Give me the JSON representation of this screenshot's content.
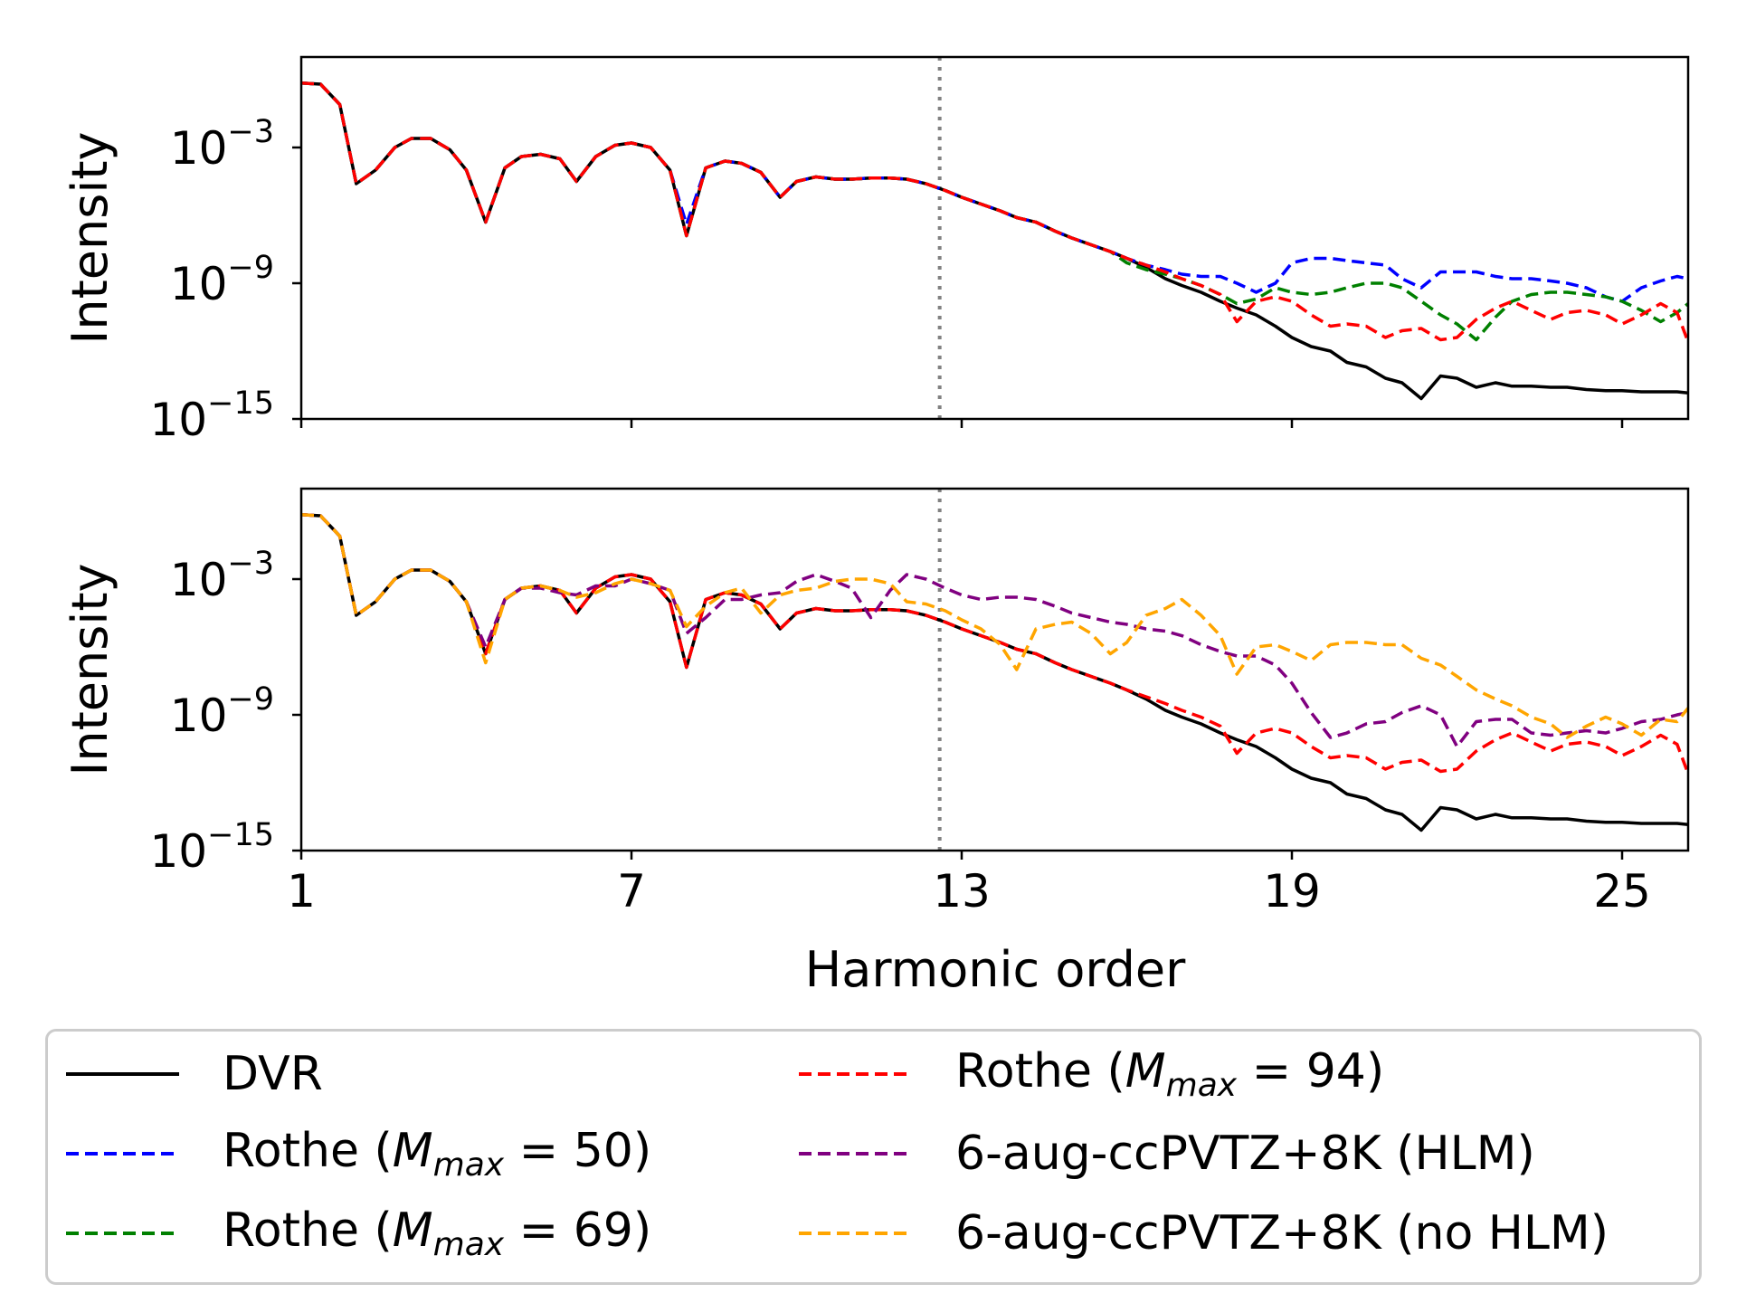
{
  "chart_data": [
    {
      "type": "line",
      "panel": "top",
      "xlabel": "",
      "ylabel": "Intensity",
      "yscale": "log",
      "xlim": [
        1,
        26.2
      ],
      "ylim": [
        1e-15,
        10.0
      ],
      "xticks": [
        1,
        7,
        13,
        19,
        25
      ],
      "xtick_labels_visible": false,
      "yticks": [
        {
          "value": -3,
          "base": "10",
          "exp": "−3"
        },
        {
          "value": -9,
          "base": "10",
          "exp": "−9"
        },
        {
          "value": -15,
          "base": "10",
          "exp": "−15"
        }
      ],
      "vline": {
        "x": 12.6,
        "style": "dotted",
        "color": "#808080"
      },
      "x": [
        1.0,
        1.35,
        1.7,
        2.0,
        2.35,
        2.7,
        3.0,
        3.35,
        3.7,
        4.0,
        4.35,
        4.7,
        5.0,
        5.35,
        5.7,
        6.0,
        6.35,
        6.7,
        7.0,
        7.35,
        7.7,
        8.0,
        8.35,
        8.7,
        9.0,
        9.35,
        9.7,
        10.0,
        10.35,
        10.7,
        11.0,
        11.35,
        11.7,
        12.0,
        12.35,
        12.7,
        13.0,
        13.35,
        13.7,
        14.0,
        14.35,
        14.7,
        15.0,
        15.35,
        15.7,
        16.0,
        16.35,
        16.7,
        17.0,
        17.35,
        17.7,
        18.0,
        18.35,
        18.7,
        19.0,
        19.35,
        19.7,
        20.0,
        20.35,
        20.7,
        21.0,
        21.35,
        21.7,
        22.0,
        22.35,
        22.7,
        23.0,
        23.35,
        23.7,
        24.0,
        24.35,
        24.7,
        25.0,
        25.35,
        25.7,
        26.0,
        26.2
      ],
      "series": [
        {
          "name": "DVR",
          "color": "#000000",
          "dash": "solid",
          "log10_values": [
            -0.15,
            -0.2,
            -1.1,
            -4.6,
            -4.0,
            -3.0,
            -2.6,
            -2.6,
            -3.1,
            -4.0,
            -6.3,
            -3.9,
            -3.4,
            -3.3,
            -3.5,
            -4.5,
            -3.4,
            -2.9,
            -2.8,
            -3.0,
            -4.0,
            -6.9,
            -3.9,
            -3.6,
            -3.7,
            -4.1,
            -5.2,
            -4.5,
            -4.3,
            -4.4,
            -4.4,
            -4.35,
            -4.35,
            -4.4,
            -4.6,
            -4.9,
            -5.2,
            -5.5,
            -5.8,
            -6.1,
            -6.3,
            -6.7,
            -7.0,
            -7.3,
            -7.6,
            -7.9,
            -8.3,
            -8.8,
            -9.1,
            -9.4,
            -9.8,
            -10.1,
            -10.4,
            -10.9,
            -11.4,
            -11.8,
            -12.0,
            -12.5,
            -12.7,
            -13.2,
            -13.4,
            -14.1,
            -13.1,
            -13.2,
            -13.6,
            -13.4,
            -13.55,
            -13.55,
            -13.6,
            -13.6,
            -13.7,
            -13.75,
            -13.75,
            -13.8,
            -13.8,
            -13.8,
            -13.85
          ]
        },
        {
          "name": "Rothe (M_max = 50)",
          "color": "#0000ff",
          "dash": "dashed",
          "log10_values": [
            -0.15,
            -0.2,
            -1.1,
            -4.6,
            -4.0,
            -3.0,
            -2.6,
            -2.6,
            -3.1,
            -4.0,
            -6.3,
            -3.9,
            -3.4,
            -3.3,
            -3.5,
            -4.5,
            -3.4,
            -2.9,
            -2.8,
            -3.0,
            -4.0,
            -6.4,
            -3.9,
            -3.6,
            -3.7,
            -4.1,
            -5.2,
            -4.5,
            -4.3,
            -4.4,
            -4.4,
            -4.35,
            -4.35,
            -4.4,
            -4.6,
            -4.9,
            -5.2,
            -5.5,
            -5.8,
            -6.1,
            -6.3,
            -6.7,
            -7.0,
            -7.3,
            -7.6,
            -7.9,
            -8.2,
            -8.4,
            -8.6,
            -8.7,
            -8.7,
            -9.0,
            -9.4,
            -9.0,
            -8.1,
            -7.9,
            -7.9,
            -8.0,
            -8.1,
            -8.2,
            -8.8,
            -9.2,
            -8.5,
            -8.5,
            -8.5,
            -8.7,
            -8.8,
            -8.8,
            -8.9,
            -9.0,
            -9.2,
            -9.6,
            -9.8,
            -9.2,
            -8.9,
            -8.7,
            -8.8
          ]
        },
        {
          "name": "Rothe (M_max = 69)",
          "color": "#008000",
          "dash": "dashed",
          "log10_values": [
            -0.15,
            -0.2,
            -1.1,
            -4.6,
            -4.0,
            -3.0,
            -2.6,
            -2.6,
            -3.1,
            -4.0,
            -6.3,
            -3.9,
            -3.4,
            -3.3,
            -3.5,
            -4.5,
            -3.4,
            -2.9,
            -2.8,
            -3.0,
            -4.0,
            -6.9,
            -3.9,
            -3.6,
            -3.7,
            -4.1,
            -5.2,
            -4.5,
            -4.3,
            -4.4,
            -4.4,
            -4.35,
            -4.35,
            -4.4,
            -4.6,
            -4.9,
            -5.2,
            -5.5,
            -5.8,
            -6.1,
            -6.3,
            -6.7,
            -7.0,
            -7.3,
            -7.6,
            -8.1,
            -8.4,
            -8.6,
            -8.8,
            -9.1,
            -9.5,
            -9.9,
            -9.7,
            -9.2,
            -9.4,
            -9.5,
            -9.4,
            -9.2,
            -9.0,
            -9.0,
            -9.2,
            -9.8,
            -10.4,
            -10.8,
            -11.5,
            -10.5,
            -9.8,
            -9.5,
            -9.4,
            -9.4,
            -9.5,
            -9.6,
            -9.8,
            -10.2,
            -10.7,
            -10.3,
            -9.9
          ]
        },
        {
          "name": "Rothe (M_max = 94)",
          "color": "#ff0000",
          "dash": "dashed",
          "log10_values": [
            -0.15,
            -0.2,
            -1.1,
            -4.6,
            -4.0,
            -3.0,
            -2.6,
            -2.6,
            -3.1,
            -4.0,
            -6.3,
            -3.9,
            -3.4,
            -3.3,
            -3.5,
            -4.5,
            -3.4,
            -2.9,
            -2.8,
            -3.0,
            -4.0,
            -6.9,
            -3.9,
            -3.6,
            -3.7,
            -4.1,
            -5.2,
            -4.5,
            -4.3,
            -4.4,
            -4.4,
            -4.35,
            -4.35,
            -4.4,
            -4.6,
            -4.9,
            -5.2,
            -5.5,
            -5.8,
            -6.1,
            -6.3,
            -6.7,
            -7.0,
            -7.3,
            -7.6,
            -7.9,
            -8.2,
            -8.5,
            -8.8,
            -9.1,
            -9.5,
            -10.7,
            -9.8,
            -9.6,
            -9.8,
            -10.4,
            -10.9,
            -10.8,
            -10.9,
            -11.4,
            -11.1,
            -11.0,
            -11.5,
            -11.4,
            -10.6,
            -10.1,
            -9.8,
            -10.2,
            -10.6,
            -10.3,
            -10.2,
            -10.4,
            -10.8,
            -10.4,
            -9.9,
            -10.3,
            -11.6
          ]
        }
      ]
    },
    {
      "type": "line",
      "panel": "bottom",
      "xlabel": "Harmonic order",
      "ylabel": "Intensity",
      "yscale": "log",
      "xlim": [
        1,
        26.2
      ],
      "ylim": [
        1e-15,
        10.0
      ],
      "xticks": [
        1,
        7,
        13,
        19,
        25
      ],
      "xtick_labels": [
        "1",
        "7",
        "13",
        "19",
        "25"
      ],
      "yticks": [
        {
          "value": -3,
          "base": "10",
          "exp": "−3"
        },
        {
          "value": -9,
          "base": "10",
          "exp": "−9"
        },
        {
          "value": -15,
          "base": "10",
          "exp": "−15"
        }
      ],
      "vline": {
        "x": 12.6,
        "style": "dotted",
        "color": "#808080"
      },
      "x": [
        1.0,
        1.35,
        1.7,
        2.0,
        2.35,
        2.7,
        3.0,
        3.35,
        3.7,
        4.0,
        4.35,
        4.7,
        5.0,
        5.35,
        5.7,
        6.0,
        6.35,
        6.7,
        7.0,
        7.35,
        7.7,
        8.0,
        8.35,
        8.7,
        9.0,
        9.35,
        9.7,
        10.0,
        10.35,
        10.7,
        11.0,
        11.35,
        11.7,
        12.0,
        12.35,
        12.7,
        13.0,
        13.35,
        13.7,
        14.0,
        14.35,
        14.7,
        15.0,
        15.35,
        15.7,
        16.0,
        16.35,
        16.7,
        17.0,
        17.35,
        17.7,
        18.0,
        18.35,
        18.7,
        19.0,
        19.35,
        19.7,
        20.0,
        20.35,
        20.7,
        21.0,
        21.35,
        21.7,
        22.0,
        22.35,
        22.7,
        23.0,
        23.35,
        23.7,
        24.0,
        24.35,
        24.7,
        25.0,
        25.35,
        25.7,
        26.0,
        26.2
      ],
      "series": [
        {
          "name": "DVR",
          "color": "#000000",
          "dash": "solid",
          "log10_values": [
            -0.15,
            -0.2,
            -1.1,
            -4.6,
            -4.0,
            -3.0,
            -2.6,
            -2.6,
            -3.1,
            -4.0,
            -6.3,
            -3.9,
            -3.4,
            -3.3,
            -3.5,
            -4.5,
            -3.4,
            -2.9,
            -2.8,
            -3.0,
            -4.0,
            -6.9,
            -3.9,
            -3.6,
            -3.7,
            -4.1,
            -5.2,
            -4.5,
            -4.3,
            -4.4,
            -4.4,
            -4.35,
            -4.35,
            -4.4,
            -4.6,
            -4.9,
            -5.2,
            -5.5,
            -5.8,
            -6.1,
            -6.3,
            -6.7,
            -7.0,
            -7.3,
            -7.6,
            -7.9,
            -8.3,
            -8.8,
            -9.1,
            -9.4,
            -9.8,
            -10.1,
            -10.4,
            -10.9,
            -11.4,
            -11.8,
            -12.0,
            -12.5,
            -12.7,
            -13.2,
            -13.4,
            -14.1,
            -13.1,
            -13.2,
            -13.6,
            -13.4,
            -13.55,
            -13.55,
            -13.6,
            -13.6,
            -13.7,
            -13.75,
            -13.75,
            -13.8,
            -13.8,
            -13.8,
            -13.85
          ]
        },
        {
          "name": "Rothe (M_max = 94)",
          "color": "#ff0000",
          "dash": "dashed",
          "log10_values": [
            -0.15,
            -0.2,
            -1.1,
            -4.6,
            -4.0,
            -3.0,
            -2.6,
            -2.6,
            -3.1,
            -4.0,
            -6.3,
            -3.9,
            -3.4,
            -3.3,
            -3.5,
            -4.5,
            -3.4,
            -2.9,
            -2.8,
            -3.0,
            -4.0,
            -6.9,
            -3.9,
            -3.6,
            -3.7,
            -4.1,
            -5.2,
            -4.5,
            -4.3,
            -4.4,
            -4.4,
            -4.35,
            -4.35,
            -4.4,
            -4.6,
            -4.9,
            -5.2,
            -5.5,
            -5.8,
            -6.1,
            -6.3,
            -6.7,
            -7.0,
            -7.3,
            -7.6,
            -7.9,
            -8.2,
            -8.5,
            -8.8,
            -9.1,
            -9.5,
            -10.7,
            -9.8,
            -9.6,
            -9.8,
            -10.4,
            -10.9,
            -10.8,
            -10.9,
            -11.4,
            -11.1,
            -11.0,
            -11.5,
            -11.4,
            -10.6,
            -10.1,
            -9.8,
            -10.2,
            -10.6,
            -10.3,
            -10.2,
            -10.4,
            -10.8,
            -10.4,
            -9.9,
            -10.3,
            -11.6
          ]
        },
        {
          "name": "6-aug-ccPVTZ+8K (HLM)",
          "color": "#800080",
          "dash": "dashed",
          "log10_values": [
            -0.15,
            -0.2,
            -1.1,
            -4.6,
            -4.0,
            -3.0,
            -2.6,
            -2.6,
            -3.1,
            -4.0,
            -6.0,
            -3.9,
            -3.4,
            -3.4,
            -3.6,
            -3.7,
            -3.3,
            -3.3,
            -3.0,
            -3.2,
            -3.5,
            -5.4,
            -4.7,
            -3.9,
            -3.9,
            -3.7,
            -3.6,
            -3.1,
            -2.8,
            -3.1,
            -3.4,
            -4.7,
            -3.5,
            -2.8,
            -3.0,
            -3.4,
            -3.7,
            -3.9,
            -3.8,
            -3.8,
            -3.9,
            -4.2,
            -4.5,
            -4.7,
            -4.9,
            -5.0,
            -5.2,
            -5.3,
            -5.5,
            -5.9,
            -6.2,
            -6.4,
            -6.4,
            -6.8,
            -7.6,
            -8.9,
            -10.0,
            -9.8,
            -9.4,
            -9.3,
            -8.9,
            -8.6,
            -9.0,
            -10.4,
            -9.3,
            -9.2,
            -9.2,
            -9.8,
            -9.9,
            -9.8,
            -9.7,
            -9.8,
            -9.6,
            -9.3,
            -9.2,
            -9.0,
            -8.9
          ]
        },
        {
          "name": "6-aug-ccPVTZ+8K (no HLM)",
          "color": "#ffa500",
          "dash": "dashed",
          "log10_values": [
            -0.15,
            -0.2,
            -1.1,
            -4.6,
            -4.0,
            -3.0,
            -2.6,
            -2.6,
            -3.1,
            -4.0,
            -6.7,
            -3.9,
            -3.4,
            -3.3,
            -3.5,
            -3.8,
            -3.6,
            -3.2,
            -3.0,
            -3.2,
            -3.5,
            -5.1,
            -4.2,
            -3.6,
            -3.4,
            -4.5,
            -3.7,
            -3.5,
            -3.4,
            -3.1,
            -3.0,
            -3.0,
            -3.2,
            -4.0,
            -4.1,
            -4.4,
            -4.8,
            -5.2,
            -5.9,
            -7.0,
            -5.2,
            -5.0,
            -4.9,
            -5.4,
            -6.3,
            -5.8,
            -4.6,
            -4.3,
            -3.9,
            -4.6,
            -5.5,
            -7.2,
            -6.0,
            -5.9,
            -6.2,
            -6.6,
            -5.9,
            -5.8,
            -5.8,
            -5.9,
            -5.9,
            -6.5,
            -6.8,
            -7.3,
            -7.9,
            -8.3,
            -8.6,
            -9.1,
            -9.4,
            -10.0,
            -9.5,
            -9.1,
            -9.4,
            -9.9,
            -9.2,
            -9.3,
            -8.7
          ]
        }
      ]
    }
  ],
  "legend": {
    "position": "bottom",
    "items": [
      {
        "label_pre": "DVR",
        "math": "",
        "label_post": "",
        "color": "#000000",
        "dash": "solid"
      },
      {
        "label_pre": "Rothe (",
        "math": "M",
        "sub": "max",
        "label_post": " = 94)",
        "color": "#ff0000",
        "dash": "dashed"
      },
      {
        "label_pre": "Rothe (",
        "math": "M",
        "sub": "max",
        "label_post": " = 50)",
        "color": "#0000ff",
        "dash": "dashed"
      },
      {
        "label_pre": "6-aug-ccPVTZ+8K (HLM)",
        "math": "",
        "label_post": "",
        "color": "#800080",
        "dash": "dashed"
      },
      {
        "label_pre": "Rothe (",
        "math": "M",
        "sub": "max",
        "label_post": " = 69)",
        "color": "#008000",
        "dash": "dashed"
      },
      {
        "label_pre": "6-aug-ccPVTZ+8K (no HLM)",
        "math": "",
        "label_post": "",
        "color": "#ffa500",
        "dash": "dashed"
      }
    ]
  }
}
